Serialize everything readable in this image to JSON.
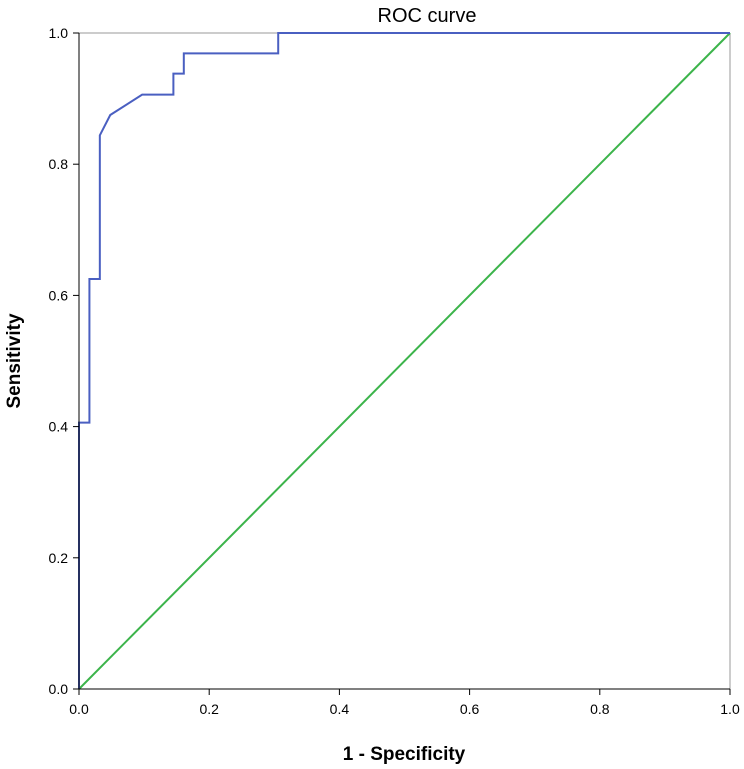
{
  "chart_data": {
    "type": "line",
    "title": "ROC curve",
    "xlabel": "1 - Specificity",
    "ylabel": "Sensitivity",
    "xlim": [
      0,
      1
    ],
    "ylim": [
      0,
      1
    ],
    "x_ticks": [
      "0.0",
      "0.2",
      "0.4",
      "0.6",
      "0.8",
      "1.0"
    ],
    "y_ticks": [
      "0.0",
      "0.2",
      "0.4",
      "0.6",
      "0.8",
      "1.0"
    ],
    "grid": false,
    "legend": false,
    "series": [
      {
        "color": "#4a5fc1",
        "x": [
          0,
          0,
          0.016,
          0.016,
          0.032,
          0.032,
          0.048,
          0.097,
          0.145,
          0.145,
          0.161,
          0.161,
          0.306,
          0.306,
          1
        ],
        "y": [
          0,
          0.406,
          0.406,
          0.625,
          0.625,
          0.844,
          0.875,
          0.906,
          0.906,
          0.938,
          0.938,
          0.969,
          0.969,
          1,
          1
        ]
      },
      {
        "color": "#3cb44b",
        "x": [
          0,
          1
        ],
        "y": [
          0,
          1
        ]
      }
    ]
  }
}
